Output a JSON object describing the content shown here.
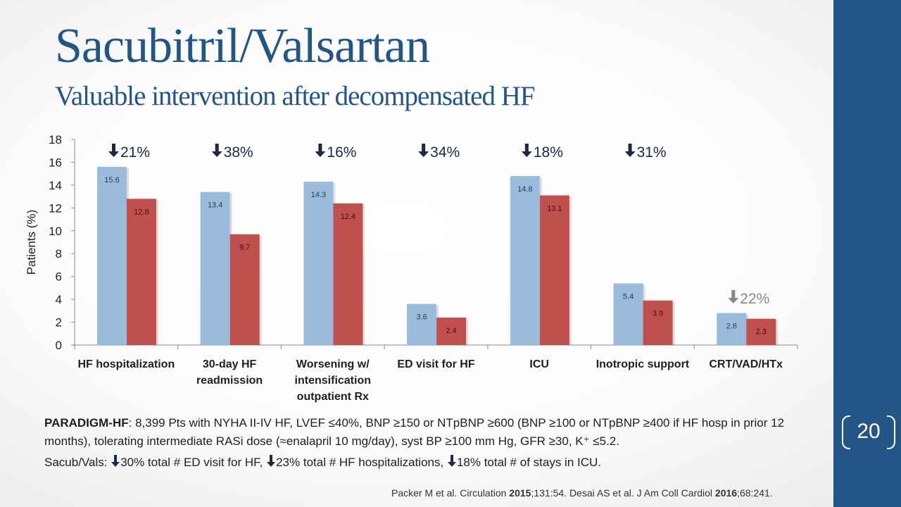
{
  "slide": {
    "title": "Sacubitril/Valsartan",
    "subtitle": "Valuable intervention after decompensated HF",
    "page_number": "20",
    "colors": {
      "accent": "#245587",
      "bar_blue": "#9bbbdd",
      "bar_red": "#c0504d",
      "arrow": "#1a2a44"
    }
  },
  "chart_data": {
    "type": "bar",
    "ylabel": "Patients (%)",
    "ylim": [
      0,
      18
    ],
    "yticks": [
      "0",
      "2",
      "4",
      "6",
      "8",
      "10",
      "12",
      "14",
      "16",
      "18"
    ],
    "categories": [
      [
        "HF hospitalization"
      ],
      [
        "30-day HF",
        "readmission"
      ],
      [
        "Worsening w/",
        "intensification",
        "outpatient Rx"
      ],
      [
        "ED visit for HF"
      ],
      [
        "ICU"
      ],
      [
        "Inotropic support"
      ],
      [
        "CRT/VAD/HTx"
      ]
    ],
    "series": [
      {
        "color": "#9bbbdd",
        "values": [
          15.6,
          13.4,
          14.3,
          3.6,
          14.8,
          5.4,
          2.8
        ]
      },
      {
        "color": "#c0504d",
        "values": [
          12.8,
          9.7,
          12.4,
          2.4,
          13.1,
          3.9,
          2.3
        ]
      }
    ],
    "reductions": [
      "21%",
      "38%",
      "16%",
      "34%",
      "18%",
      "31%",
      "22%"
    ],
    "arrow_glyph": "🡇",
    "grid": false
  },
  "footnote": {
    "trial": "PARADIGM-HF",
    "description": ": 8,399 Pts with NYHA II-IV HF, LVEF ≤40%, BNP ≥150 or NTpBNP ≥600 (BNP ≥100 or NTpBNP ≥400 if HF hosp in prior 12 months), tolerating intermediate RASi dose (≈enalapril 10 mg/day), syst BP ≥100 mm Hg, GFR ≥30, K⁺ ≤5.2."
  },
  "summary": {
    "prefix": "Sacub/Vals: ",
    "item1": "30% total # ED visit for HF, ",
    "item2": "23% total # HF hospitalizations, ",
    "item3": "18% total # of stays in ICU."
  },
  "citation": {
    "part1": "Packer M et al. Circulation ",
    "year1": "2015",
    "part2": ";131:54. Desai AS et al. J Am Coll Cardiol ",
    "year2": "2016",
    "part3": ";68:241."
  }
}
